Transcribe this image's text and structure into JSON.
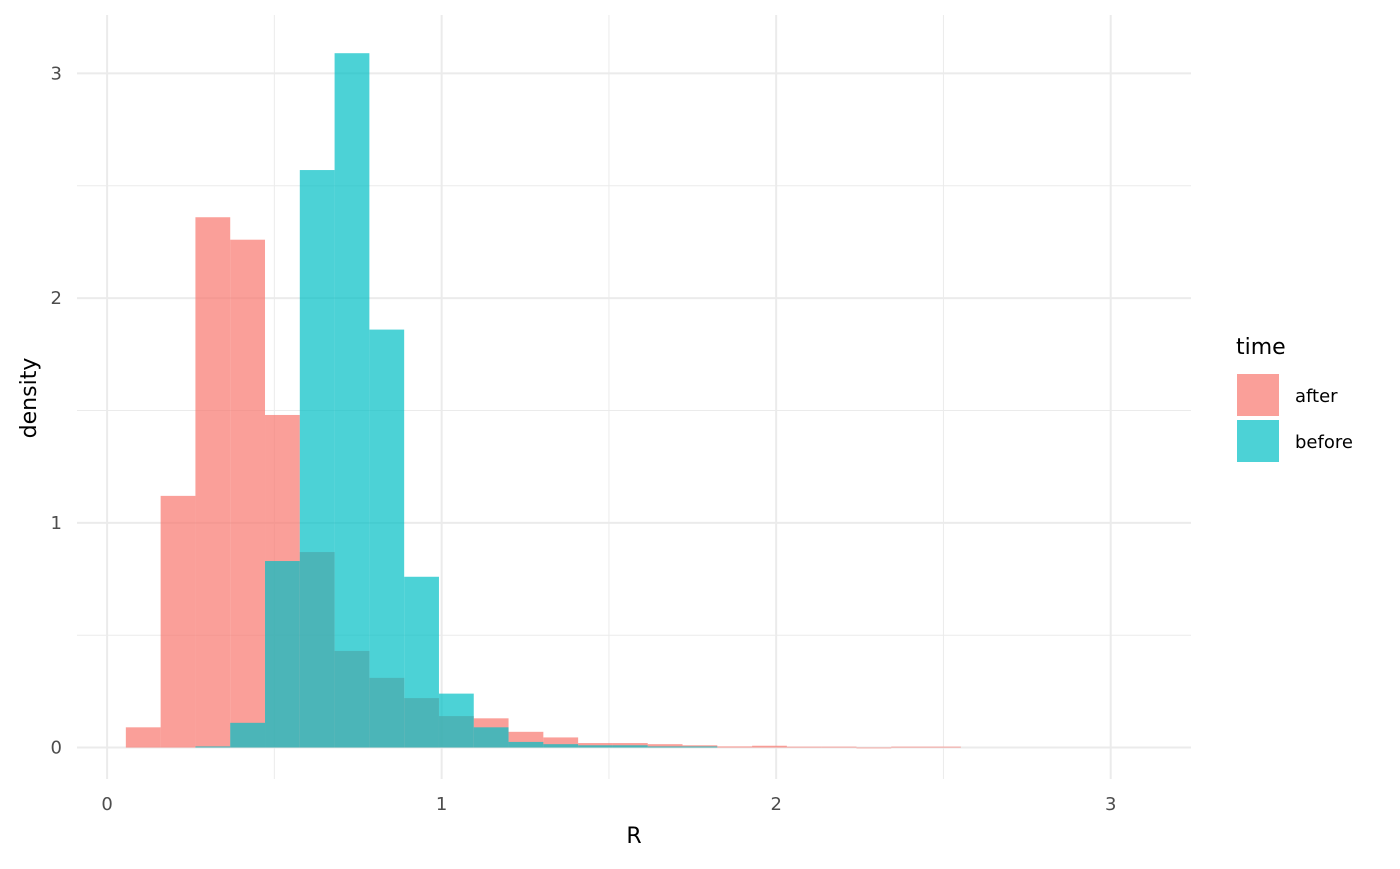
{
  "chart_data": {
    "type": "bar",
    "xlabel": "R",
    "ylabel": "density",
    "xlim": [
      -0.09,
      3.24
    ],
    "ylim": [
      -0.14,
      3.26
    ],
    "x_ticks": [
      "0",
      "1",
      "2",
      "3"
    ],
    "y_ticks": [
      "0",
      "1",
      "2",
      "3"
    ],
    "grid": true,
    "bin_width": 0.104,
    "legend": {
      "title": "time",
      "position": "right",
      "entries": [
        "after",
        "before"
      ]
    },
    "series": [
      {
        "name": "after",
        "color": "#F8766D",
        "bins": [
          {
            "x0": 0.056,
            "x1": 0.16,
            "y": 0.09
          },
          {
            "x0": 0.16,
            "x1": 0.264,
            "y": 1.12
          },
          {
            "x0": 0.264,
            "x1": 0.368,
            "y": 2.36
          },
          {
            "x0": 0.368,
            "x1": 0.472,
            "y": 2.26
          },
          {
            "x0": 0.472,
            "x1": 0.576,
            "y": 1.48
          },
          {
            "x0": 0.576,
            "x1": 0.68,
            "y": 0.87
          },
          {
            "x0": 0.68,
            "x1": 0.784,
            "y": 0.43
          },
          {
            "x0": 0.784,
            "x1": 0.888,
            "y": 0.31
          },
          {
            "x0": 0.888,
            "x1": 0.992,
            "y": 0.22
          },
          {
            "x0": 0.992,
            "x1": 1.096,
            "y": 0.14
          },
          {
            "x0": 1.096,
            "x1": 1.2,
            "y": 0.13
          },
          {
            "x0": 1.2,
            "x1": 1.304,
            "y": 0.07
          },
          {
            "x0": 1.304,
            "x1": 1.408,
            "y": 0.045
          },
          {
            "x0": 1.408,
            "x1": 1.512,
            "y": 0.02
          },
          {
            "x0": 1.512,
            "x1": 1.616,
            "y": 0.02
          },
          {
            "x0": 1.616,
            "x1": 1.72,
            "y": 0.015
          },
          {
            "x0": 1.72,
            "x1": 1.824,
            "y": 0.01
          },
          {
            "x0": 1.824,
            "x1": 1.928,
            "y": 0.005
          },
          {
            "x0": 1.928,
            "x1": 2.032,
            "y": 0.008
          },
          {
            "x0": 2.032,
            "x1": 2.136,
            "y": 0.004
          },
          {
            "x0": 2.136,
            "x1": 2.24,
            "y": 0.004
          },
          {
            "x0": 2.24,
            "x1": 2.344,
            "y": 0.0
          },
          {
            "x0": 2.344,
            "x1": 2.448,
            "y": 0.004
          },
          {
            "x0": 2.448,
            "x1": 2.552,
            "y": 0.004
          }
        ]
      },
      {
        "name": "before",
        "color": "#00BFC4",
        "bins": [
          {
            "x0": 0.264,
            "x1": 0.368,
            "y": 0.005
          },
          {
            "x0": 0.368,
            "x1": 0.472,
            "y": 0.11
          },
          {
            "x0": 0.472,
            "x1": 0.576,
            "y": 0.83
          },
          {
            "x0": 0.576,
            "x1": 0.68,
            "y": 2.57
          },
          {
            "x0": 0.68,
            "x1": 0.784,
            "y": 3.09
          },
          {
            "x0": 0.784,
            "x1": 0.888,
            "y": 1.86
          },
          {
            "x0": 0.888,
            "x1": 0.992,
            "y": 0.76
          },
          {
            "x0": 0.992,
            "x1": 1.096,
            "y": 0.24
          },
          {
            "x0": 1.096,
            "x1": 1.2,
            "y": 0.09
          },
          {
            "x0": 1.2,
            "x1": 1.304,
            "y": 0.025
          },
          {
            "x0": 1.304,
            "x1": 1.408,
            "y": 0.015
          },
          {
            "x0": 1.408,
            "x1": 1.512,
            "y": 0.01
          },
          {
            "x0": 1.512,
            "x1": 1.616,
            "y": 0.01
          },
          {
            "x0": 1.616,
            "x1": 1.72,
            "y": 0.005
          },
          {
            "x0": 1.72,
            "x1": 1.824,
            "y": 0.005
          }
        ]
      }
    ]
  }
}
